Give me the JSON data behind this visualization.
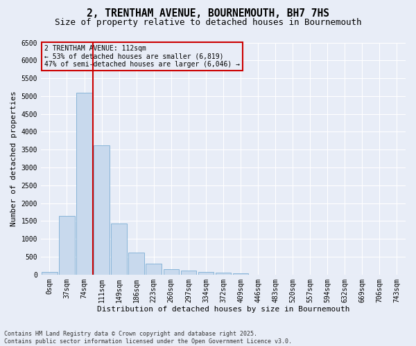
{
  "title_line1": "2, TRENTHAM AVENUE, BOURNEMOUTH, BH7 7HS",
  "title_line2": "Size of property relative to detached houses in Bournemouth",
  "xlabel": "Distribution of detached houses by size in Bournemouth",
  "ylabel": "Number of detached properties",
  "categories": [
    "0sqm",
    "37sqm",
    "74sqm",
    "111sqm",
    "149sqm",
    "186sqm",
    "223sqm",
    "260sqm",
    "297sqm",
    "334sqm",
    "372sqm",
    "409sqm",
    "446sqm",
    "483sqm",
    "520sqm",
    "557sqm",
    "594sqm",
    "632sqm",
    "669sqm",
    "706sqm",
    "743sqm"
  ],
  "values": [
    75,
    1650,
    5100,
    3620,
    1430,
    620,
    305,
    155,
    110,
    75,
    55,
    40,
    0,
    0,
    0,
    0,
    0,
    0,
    0,
    0,
    0
  ],
  "bar_color": "#c8d9ed",
  "bar_edge_color": "#7aadd4",
  "vline_color": "#cc0000",
  "vline_x": 2.5,
  "annotation_text": "2 TRENTHAM AVENUE: 112sqm\n← 53% of detached houses are smaller (6,819)\n47% of semi-detached houses are larger (6,046) →",
  "annotation_box_edgecolor": "#cc0000",
  "ylim_max": 6500,
  "yticks": [
    0,
    500,
    1000,
    1500,
    2000,
    2500,
    3000,
    3500,
    4000,
    4500,
    5000,
    5500,
    6000,
    6500
  ],
  "bg_color": "#e8edf7",
  "grid_color": "#ffffff",
  "footer": "Contains HM Land Registry data © Crown copyright and database right 2025.\nContains public sector information licensed under the Open Government Licence v3.0.",
  "title1_size": 10.5,
  "title2_size": 9,
  "tick_size": 7,
  "label_size": 8,
  "ann_fontsize": 7,
  "footer_size": 6
}
